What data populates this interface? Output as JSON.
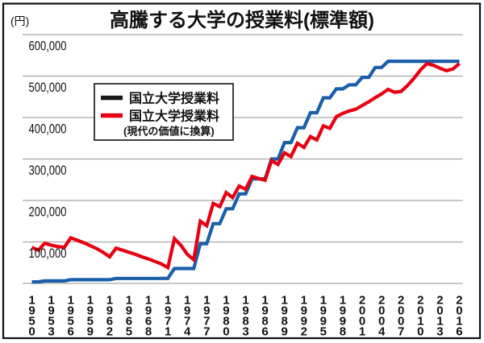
{
  "frame": {
    "unit_label": "(円)",
    "title": "高騰する大学の授業料(標準額)"
  },
  "legend": {
    "position": "upper-left-inside",
    "items": [
      {
        "label": "国立大学授業料",
        "label_line2": "",
        "swatch_color": "#1a1a1a"
      },
      {
        "label": "国立大学授業料",
        "label_line2": "(現代の価値に換算)",
        "swatch_color": "#e60012"
      }
    ]
  },
  "chart_data": {
    "type": "line",
    "title": "高騰する大学の授業料(標準額)",
    "ylabel": "(円)",
    "xlabel": "",
    "grid": true,
    "ylim": [
      0,
      600000
    ],
    "ytick_step": 100000,
    "y_ticks": [
      {
        "value": 100000,
        "label": "100,000"
      },
      {
        "value": 200000,
        "label": "200,000"
      },
      {
        "value": 300000,
        "label": "300,000"
      },
      {
        "value": 400000,
        "label": "400,000"
      },
      {
        "value": 500000,
        "label": "500,000"
      },
      {
        "value": 600000,
        "label": "600,000"
      }
    ],
    "x_tick_interval": 3,
    "x_tick_labels": [
      "1950",
      "1953",
      "1956",
      "1959",
      "1962",
      "1965",
      "1968",
      "1971",
      "1974",
      "1977",
      "1980",
      "1983",
      "1986",
      "1989",
      "1992",
      "1995",
      "1998",
      "2001",
      "2004",
      "2007",
      "2010",
      "2013",
      "2016"
    ],
    "x": [
      1950,
      1951,
      1952,
      1953,
      1954,
      1955,
      1956,
      1957,
      1958,
      1959,
      1960,
      1961,
      1962,
      1963,
      1964,
      1965,
      1966,
      1967,
      1968,
      1969,
      1970,
      1971,
      1972,
      1973,
      1974,
      1975,
      1976,
      1977,
      1978,
      1979,
      1980,
      1981,
      1982,
      1983,
      1984,
      1985,
      1986,
      1987,
      1988,
      1989,
      1990,
      1991,
      1992,
      1993,
      1994,
      1995,
      1996,
      1997,
      1998,
      1999,
      2000,
      2001,
      2002,
      2003,
      2004,
      2005,
      2006,
      2007,
      2008,
      2009,
      2010,
      2011,
      2012,
      2013,
      2014,
      2015,
      2016
    ],
    "series": [
      {
        "name": "国立大学授業料",
        "color": "#1b5fa8",
        "values": [
          3600,
          3600,
          6000,
          6000,
          6000,
          6000,
          9000,
          9000,
          9000,
          9000,
          9000,
          9000,
          9000,
          12000,
          12000,
          12000,
          12000,
          12000,
          12000,
          12000,
          12000,
          12000,
          36000,
          36000,
          36000,
          36000,
          96000,
          96000,
          144000,
          144000,
          180000,
          180000,
          216000,
          216000,
          252000,
          252000,
          252000,
          300000,
          300000,
          339600,
          339600,
          375600,
          375600,
          411600,
          411600,
          447600,
          447600,
          469200,
          469200,
          478800,
          478800,
          496800,
          496800,
          520800,
          520800,
          535800,
          535800,
          535800,
          535800,
          535800,
          535800,
          535800,
          535800,
          535800,
          535800,
          535800,
          535800
        ]
      },
      {
        "name": "国立大学授業料(現代の価値に換算)",
        "color": "#e60012",
        "values": [
          87000,
          80000,
          97000,
          92000,
          89000,
          87000,
          110000,
          104000,
          98000,
          91000,
          84000,
          75000,
          64000,
          85000,
          80000,
          75000,
          70000,
          64000,
          59000,
          53000,
          47000,
          38000,
          108000,
          92000,
          70000,
          57000,
          150000,
          139000,
          193000,
          185000,
          219000,
          207000,
          235000,
          227000,
          258000,
          253000,
          249000,
          296000,
          287000,
          315000,
          306000,
          338000,
          328000,
          354000,
          346000,
          380000,
          374000,
          402000,
          410000,
          416000,
          420000,
          429000,
          438000,
          448000,
          457000,
          468000,
          461000,
          463000,
          477000,
          495000,
          515000,
          530000,
          526000,
          519000,
          513000,
          517000,
          530000
        ]
      }
    ],
    "legend_entries": [
      "国立大学授業料",
      "国立大学授業料(現代の価値に換算)"
    ],
    "grid_color": "#a8a8a8",
    "frame_border_color": "#111111"
  }
}
